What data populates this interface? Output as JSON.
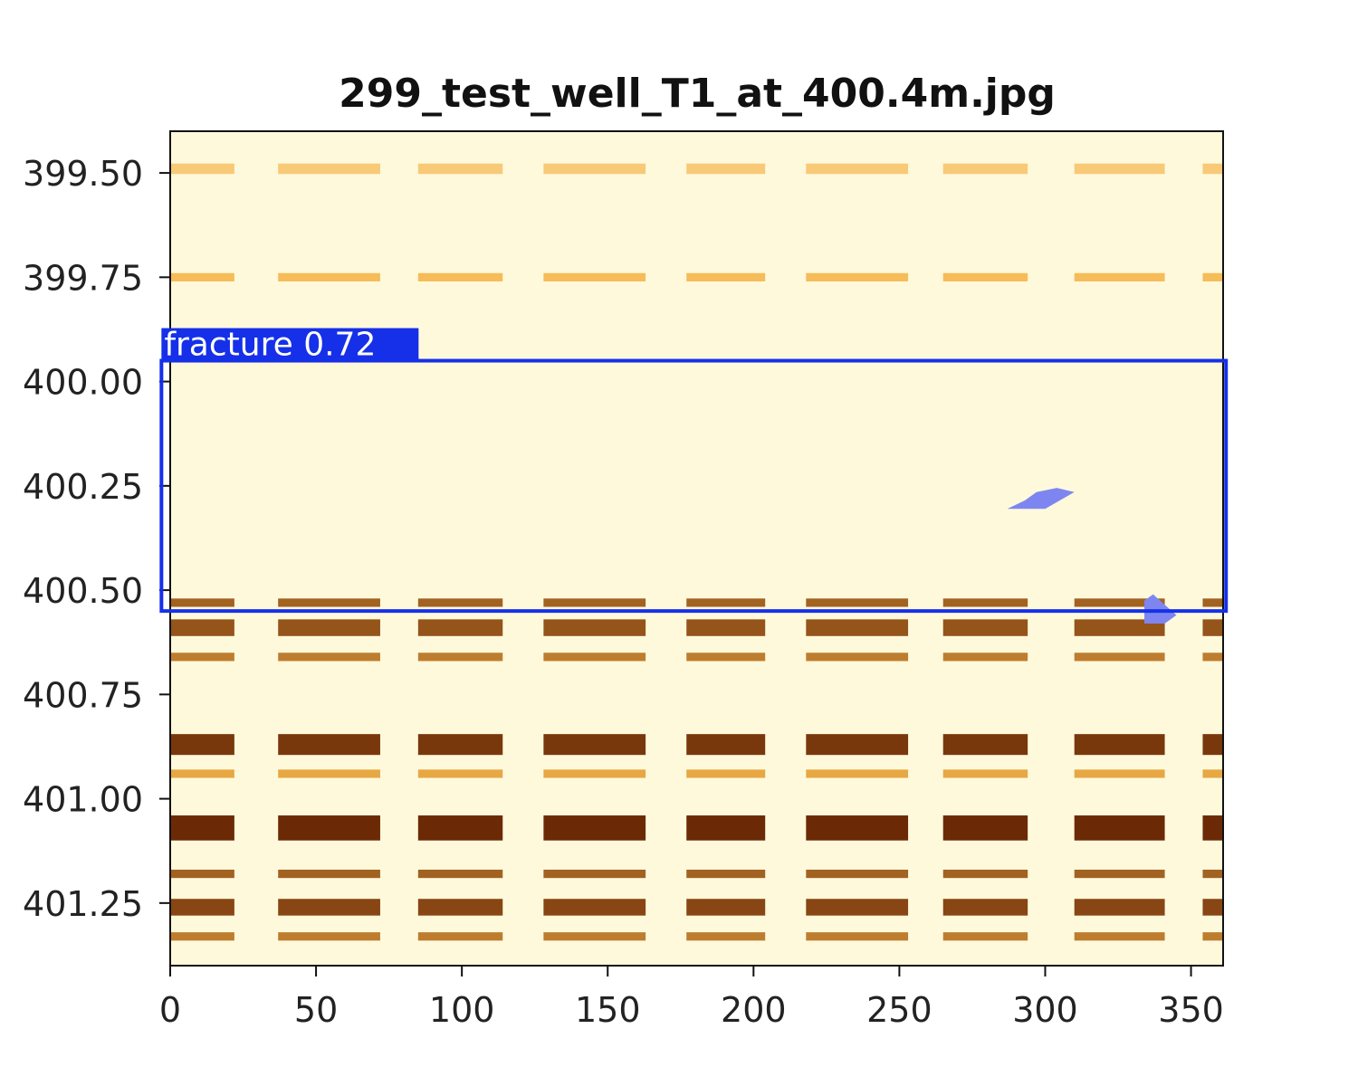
{
  "chart_data": {
    "type": "heatmap",
    "title": "299_test_well_T1_at_400.4m.jpg",
    "xlabel": "",
    "ylabel": "",
    "x_range": [
      0,
      361
    ],
    "y_range": [
      399.4,
      401.4
    ],
    "y_inverted": true,
    "x_ticks": [
      0,
      50,
      100,
      150,
      200,
      250,
      300,
      350
    ],
    "x_tick_labels": [
      "0",
      "50",
      "100",
      "150",
      "200",
      "250",
      "300",
      "350"
    ],
    "y_ticks": [
      399.5,
      399.75,
      400.0,
      400.25,
      400.5,
      400.75,
      401.0,
      401.25
    ],
    "y_tick_labels": [
      "399.50",
      "399.75",
      "400.00",
      "400.25",
      "400.50",
      "400.75",
      "401.00",
      "401.25"
    ],
    "grid": false,
    "colormap": "YlOrBr",
    "colors": {
      "light": "#fff9dc",
      "mid": "#f5b54a",
      "dark": "#6b2a05",
      "box": "#1530e8",
      "mask": "#7d86f0"
    },
    "pad_strips_deg": [
      [
        22,
        37
      ],
      [
        72,
        85
      ],
      [
        114,
        128
      ],
      [
        163,
        177
      ],
      [
        204,
        218
      ],
      [
        253,
        265
      ],
      [
        294,
        310
      ],
      [
        341,
        354
      ]
    ],
    "bands": [
      {
        "depth": 399.49,
        "width": 0.025,
        "intensity": 0.35
      },
      {
        "depth": 399.75,
        "width": 0.02,
        "intensity": 0.45
      },
      {
        "depth": 400.53,
        "width": 0.02,
        "intensity": 0.8
      },
      {
        "depth": 400.59,
        "width": 0.04,
        "intensity": 0.85
      },
      {
        "depth": 400.66,
        "width": 0.02,
        "intensity": 0.7
      },
      {
        "depth": 400.87,
        "width": 0.05,
        "intensity": 0.95
      },
      {
        "depth": 400.94,
        "width": 0.02,
        "intensity": 0.55
      },
      {
        "depth": 401.07,
        "width": 0.06,
        "intensity": 1.0
      },
      {
        "depth": 401.18,
        "width": 0.02,
        "intensity": 0.8
      },
      {
        "depth": 401.26,
        "width": 0.04,
        "intensity": 0.9
      },
      {
        "depth": 401.33,
        "width": 0.02,
        "intensity": 0.7
      }
    ],
    "detections": [
      {
        "label": "fracture",
        "confidence": "0.72",
        "x_range": [
          -3,
          362
        ],
        "y_range": [
          399.95,
          400.55
        ]
      }
    ],
    "mask_patches": [
      {
        "points": [
          [
            287,
            400.305
          ],
          [
            293,
            400.285
          ],
          [
            297,
            400.265
          ],
          [
            304,
            400.255
          ],
          [
            310,
            400.265
          ],
          [
            305,
            400.285
          ],
          [
            300,
            400.305
          ]
        ]
      },
      {
        "points": [
          [
            334,
            400.58
          ],
          [
            334,
            400.525
          ],
          [
            337,
            400.51
          ],
          [
            341,
            400.535
          ],
          [
            345,
            400.56
          ],
          [
            341,
            400.58
          ]
        ]
      }
    ]
  }
}
